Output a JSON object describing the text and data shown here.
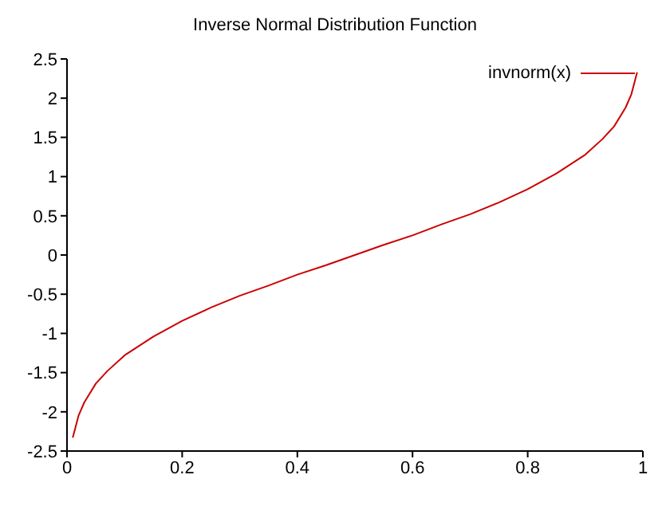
{
  "chart_data": {
    "type": "line",
    "title": "Inverse Normal Distribution Function",
    "x": [
      0.01,
      0.02,
      0.03,
      0.05,
      0.07,
      0.1,
      0.15,
      0.2,
      0.25,
      0.3,
      0.35,
      0.4,
      0.45,
      0.5,
      0.55,
      0.6,
      0.65,
      0.7,
      0.75,
      0.8,
      0.85,
      0.9,
      0.93,
      0.95,
      0.97,
      0.98,
      0.99
    ],
    "series": [
      {
        "name": "invnorm(x)",
        "color": "#cc0000",
        "values": [
          -2.33,
          -2.05,
          -1.88,
          -1.64,
          -1.48,
          -1.28,
          -1.04,
          -0.84,
          -0.67,
          -0.52,
          -0.39,
          -0.25,
          -0.13,
          0,
          0.13,
          0.25,
          0.39,
          0.52,
          0.67,
          0.84,
          1.04,
          1.28,
          1.48,
          1.64,
          1.88,
          2.05,
          2.33
        ]
      }
    ],
    "xlim": [
      0,
      1
    ],
    "xticks": [
      0,
      0.2,
      0.4,
      0.6,
      0.8,
      1
    ],
    "ylim": [
      -2.5,
      2.5
    ],
    "yticks": [
      -2.5,
      -2,
      -1.5,
      -1,
      -0.5,
      0,
      0.5,
      1,
      1.5,
      2,
      2.5
    ],
    "grid": false,
    "legend": "top right",
    "marker": "none",
    "line_style": "solid"
  }
}
